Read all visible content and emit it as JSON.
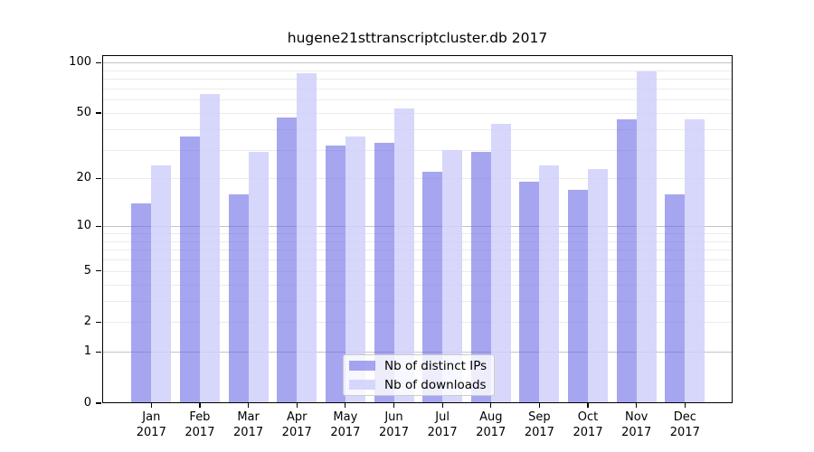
{
  "chart_data": {
    "type": "bar",
    "title": "hugene21sttranscriptcluster.db 2017",
    "categories": [
      "Jan 2017",
      "Feb 2017",
      "Mar 2017",
      "Apr 2017",
      "May 2017",
      "Jun 2017",
      "Jul 2017",
      "Aug 2017",
      "Sep 2017",
      "Oct 2017",
      "Nov 2017",
      "Dec 2017"
    ],
    "series": [
      {
        "name": "Nb of distinct IPs",
        "color": "#6666e6",
        "fill": "rgba(102,102,230,0.58)",
        "values": [
          14,
          36,
          16,
          47,
          32,
          33,
          22,
          29,
          19,
          17,
          46,
          16
        ]
      },
      {
        "name": "Nb of downloads",
        "color": "#ccccff",
        "fill": "rgba(208,208,252,0.85)",
        "values": [
          24,
          65,
          29,
          86,
          36,
          53,
          30,
          43,
          24,
          23,
          89,
          46
        ]
      }
    ],
    "y_scale": "log10(1+x)",
    "y_ticks": [
      0,
      1,
      2,
      5,
      10,
      20,
      50,
      100
    ],
    "minor_gridlines": [
      2,
      3,
      4,
      5,
      6,
      7,
      8,
      9,
      20,
      30,
      40,
      50,
      60,
      70,
      80,
      90
    ],
    "major_gridlines": [
      1,
      10,
      100
    ],
    "ylim": [
      0,
      110
    ],
    "grid": true,
    "legend_position": "inside-bottom-center",
    "gridline_minor_color": "#ebebeb",
    "gridline_major_color": "#c3c3c9",
    "xlabel": "",
    "ylabel": ""
  }
}
